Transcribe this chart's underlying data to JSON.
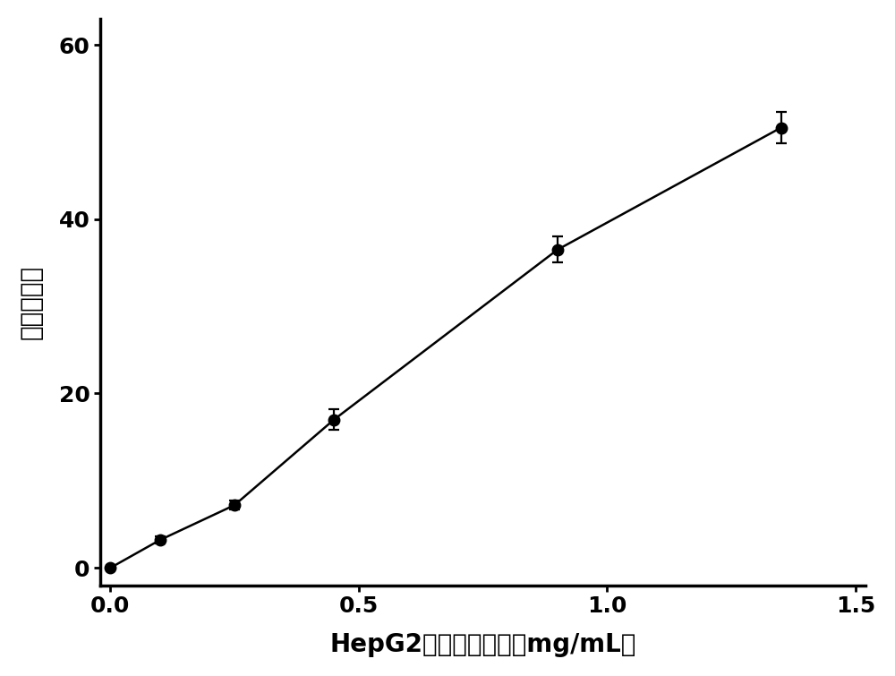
{
  "x": [
    0.0,
    0.1,
    0.25,
    0.45,
    0.9,
    1.35
  ],
  "y": [
    0.0,
    3.2,
    7.2,
    17.0,
    36.5,
    50.5
  ],
  "yerr": [
    0.0,
    0.4,
    0.5,
    1.2,
    1.5,
    1.8
  ],
  "xlabel": "HepG2细胞蛋白浓度（mg/mL）",
  "ylabel": "荧光增长率",
  "xlim": [
    -0.02,
    1.52
  ],
  "ylim": [
    -2,
    63
  ],
  "xticks": [
    0.0,
    0.5,
    1.0,
    1.5
  ],
  "yticks": [
    0,
    20,
    40,
    60
  ],
  "line_color": "#000000",
  "marker_color": "#000000",
  "marker_size": 9,
  "line_width": 1.8,
  "capsize": 4,
  "background_color": "#ffffff",
  "axes_background": "#ffffff",
  "xlabel_fontsize": 20,
  "ylabel_fontsize": 20,
  "tick_fontsize": 18
}
